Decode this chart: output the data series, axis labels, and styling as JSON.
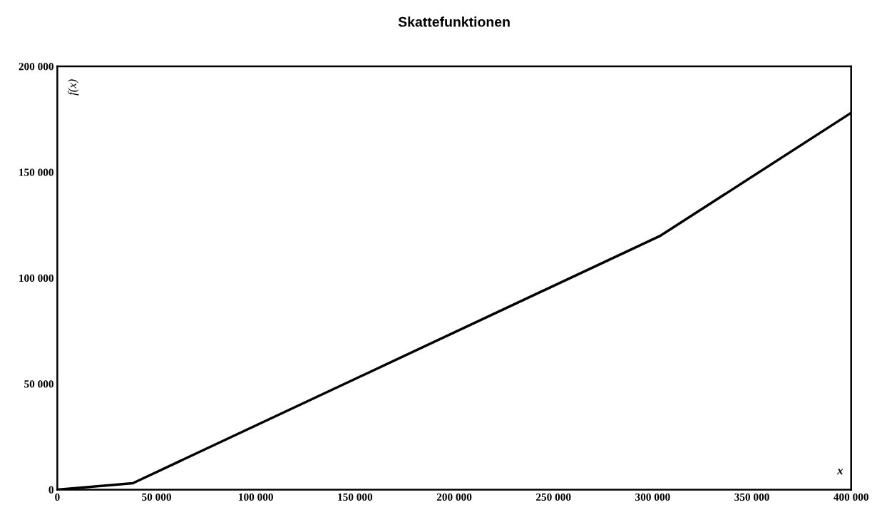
{
  "chart_data": {
    "type": "line",
    "title": "Skattefunktionen",
    "xlabel": "x",
    "ylabel": "f(x)",
    "x": [
      0,
      38000,
      304000,
      400000
    ],
    "series": [
      {
        "color": "#000000",
        "values": [
          0,
          3000,
          120000,
          178000
        ]
      }
    ],
    "xlim": [
      0,
      400000
    ],
    "ylim": [
      0,
      200000
    ],
    "xticks": [
      0,
      {
        "value": 50000,
        "label": "50 000"
      },
      {
        "value": 100000,
        "label": "100 000"
      },
      {
        "value": 150000,
        "label": "150 000"
      },
      {
        "value": 200000,
        "label": "200 000"
      },
      {
        "value": 250000,
        "label": "250 000"
      },
      {
        "value": 300000,
        "label": "300 000"
      },
      {
        "value": 350000,
        "label": "350 000"
      },
      {
        "value": 400000,
        "label": "400 000"
      }
    ],
    "yticks": [
      0,
      {
        "value": 50000,
        "label": "50 000"
      },
      {
        "value": 100000,
        "label": "100 000"
      },
      {
        "value": 150000,
        "label": "150 000"
      },
      {
        "value": 200000,
        "label": "200 000"
      }
    ],
    "grid": false,
    "legend": false,
    "marker": "none",
    "line_style": "solid"
  }
}
